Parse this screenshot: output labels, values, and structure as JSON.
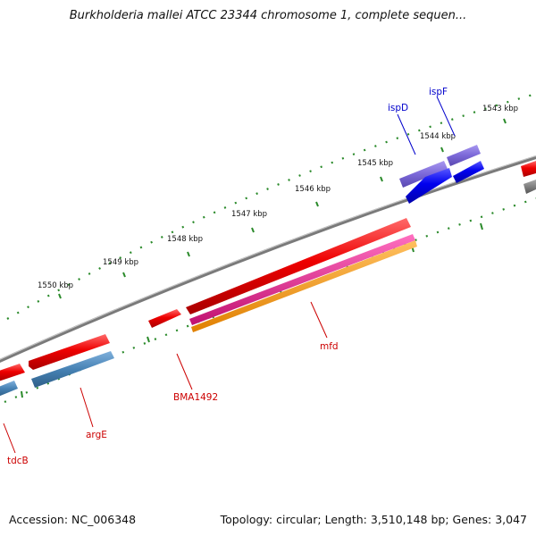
{
  "title": "Burkholderia mallei ATCC 23344 chromosome 1, complete sequen...",
  "footer": {
    "accession": "Accession: NC_006348",
    "summary": "Topology: circular; Length: 3,510,148 bp; Genes: 3,047"
  },
  "scale": {
    "tick_labels": [
      "1550 kbp",
      "1549 kbp",
      "1548 kbp",
      "1547 kbp",
      "1546 kbp",
      "1545 kbp",
      "1544 kbp",
      "1543 kbp"
    ]
  },
  "genes": [
    {
      "name": "tdcB",
      "strand": "forward"
    },
    {
      "name": "argE",
      "strand": "forward"
    },
    {
      "name": "BMA1492",
      "strand": "forward"
    },
    {
      "name": "mfd",
      "strand": "forward"
    },
    {
      "name": "ispD",
      "strand": "reverse"
    },
    {
      "name": "ispF",
      "strand": "reverse"
    }
  ],
  "colors": {
    "forward_gene": "#e60000",
    "reverse_gene": "#0000ee",
    "reverse_cds": "#7b68d8",
    "forward_cds": "#4682b4",
    "rna": "#e0208f",
    "other_feature": "#ff9900",
    "backbone": "#888888",
    "tick": "#2a8a2a",
    "forward_label": "#cc0000",
    "reverse_label": "#0000cc"
  }
}
